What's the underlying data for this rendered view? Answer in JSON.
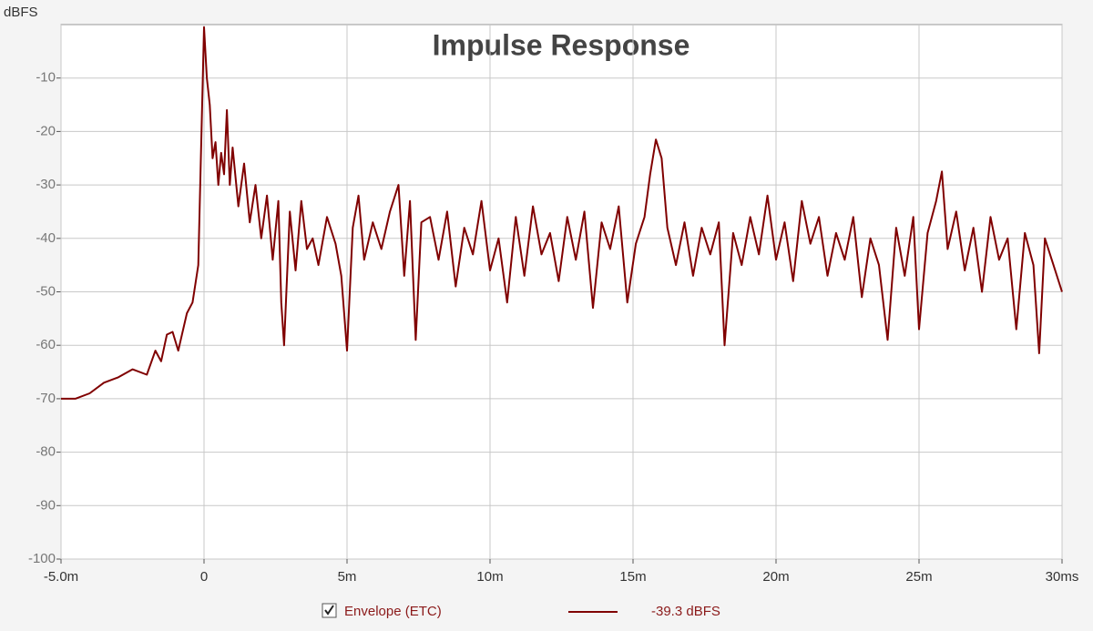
{
  "chart_data": {
    "type": "line",
    "title": "Impulse Response",
    "y_label": "dBFS",
    "x": [
      -5,
      -4.5,
      -4,
      -3.5,
      -3,
      -2.5,
      -2,
      -1.7,
      -1.5,
      -1.3,
      -1.1,
      -0.9,
      -0.6,
      -0.4,
      -0.2,
      0,
      0.1,
      0.2,
      0.3,
      0.4,
      0.5,
      0.6,
      0.7,
      0.8,
      0.9,
      1.0,
      1.2,
      1.4,
      1.6,
      1.8,
      2.0,
      2.2,
      2.4,
      2.6,
      2.7,
      2.8,
      3.0,
      3.2,
      3.4,
      3.6,
      3.8,
      4.0,
      4.3,
      4.6,
      4.8,
      5.0,
      5.2,
      5.4,
      5.6,
      5.9,
      6.2,
      6.5,
      6.8,
      7.0,
      7.2,
      7.4,
      7.6,
      7.9,
      8.2,
      8.5,
      8.8,
      9.1,
      9.4,
      9.7,
      10.0,
      10.3,
      10.6,
      10.9,
      11.2,
      11.5,
      11.8,
      12.1,
      12.4,
      12.7,
      13.0,
      13.3,
      13.6,
      13.9,
      14.2,
      14.5,
      14.8,
      15.1,
      15.4,
      15.6,
      15.8,
      16.0,
      16.2,
      16.5,
      16.8,
      17.1,
      17.4,
      17.7,
      18.0,
      18.2,
      18.5,
      18.8,
      19.1,
      19.4,
      19.7,
      20.0,
      20.3,
      20.6,
      20.9,
      21.2,
      21.5,
      21.8,
      22.1,
      22.4,
      22.7,
      23.0,
      23.3,
      23.6,
      23.9,
      24.2,
      24.5,
      24.8,
      25.0,
      25.3,
      25.6,
      25.8,
      26.0,
      26.3,
      26.6,
      26.9,
      27.2,
      27.5,
      27.8,
      28.1,
      28.4,
      28.7,
      29.0,
      29.2,
      29.4,
      29.7,
      30.0
    ],
    "series": [
      {
        "name": "Envelope (ETC)",
        "color": "#800000",
        "values": [
          -70,
          -70,
          -69,
          -67,
          -66,
          -64.5,
          -65.5,
          -61,
          -63,
          -58,
          -57.5,
          -61,
          -54,
          -52,
          -45,
          -0.5,
          -10,
          -15,
          -25,
          -22,
          -30,
          -24,
          -28,
          -16,
          -30,
          -23,
          -34,
          -26,
          -37,
          -30,
          -40,
          -32,
          -44,
          -33,
          -52,
          -60,
          -35,
          -46,
          -33,
          -42,
          -40,
          -45,
          -36,
          -41,
          -47,
          -61,
          -38,
          -32,
          -44,
          -37,
          -42,
          -35,
          -30,
          -47,
          -33,
          -59,
          -37,
          -36,
          -44,
          -35,
          -49,
          -38,
          -43,
          -33,
          -46,
          -40,
          -52,
          -36,
          -47,
          -34,
          -43,
          -39,
          -48,
          -36,
          -44,
          -35,
          -53,
          -37,
          -42,
          -34,
          -52,
          -41,
          -36,
          -28,
          -21.5,
          -25,
          -38,
          -45,
          -37,
          -47,
          -38,
          -43,
          -37,
          -60,
          -39,
          -45,
          -36,
          -43,
          -32,
          -44,
          -37,
          -48,
          -33,
          -41,
          -36,
          -47,
          -39,
          -44,
          -36,
          -51,
          -40,
          -45,
          -59,
          -38,
          -47,
          -36,
          -57,
          -39,
          -33,
          -27.5,
          -42,
          -35,
          -46,
          -38,
          -50,
          -36,
          -44,
          -40,
          -57,
          -39,
          -45,
          -61.5,
          -40,
          -45,
          -50
        ],
        "readout": "-39.3 dBFS"
      }
    ],
    "xlim": [
      -5,
      30
    ],
    "ylim": [
      -100,
      0
    ],
    "xticks": [
      {
        "value": -5,
        "label": "-5.0m"
      },
      0,
      {
        "value": 5,
        "label": "5m"
      },
      {
        "value": 10,
        "label": "10m"
      },
      {
        "value": 15,
        "label": "15m"
      },
      {
        "value": 20,
        "label": "20m"
      },
      {
        "value": 25,
        "label": "25m"
      },
      {
        "value": 30,
        "label": "30ms"
      }
    ],
    "yticks": [
      -10,
      -20,
      -30,
      -40,
      -50,
      -60,
      -70,
      -80,
      -90,
      -100
    ],
    "grid": true
  }
}
